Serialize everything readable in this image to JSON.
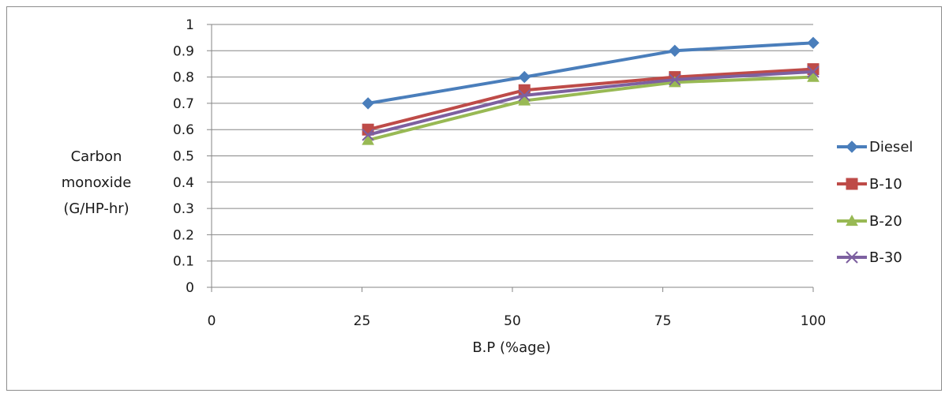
{
  "chart_data": {
    "type": "line",
    "xlabel": "B.P (%age)",
    "ylabel": [
      "Carbon",
      "monoxide",
      "(G/HP-hr)"
    ],
    "xlim": [
      0,
      100
    ],
    "ylim": [
      0,
      1
    ],
    "x_ticks": [
      "0",
      "25",
      "50",
      "75",
      "100"
    ],
    "y_ticks": [
      "0",
      "0.1",
      "0.2",
      "0.3",
      "0.4",
      "0.5",
      "0.6",
      "0.7",
      "0.8",
      "0.9",
      "1"
    ],
    "grid": "horizontal",
    "legend_position": "right",
    "series": [
      {
        "name": "Diesel",
        "color": "#4a7ebb",
        "marker": "diamond",
        "x": [
          26,
          52,
          77,
          100
        ],
        "values": [
          0.7,
          0.8,
          0.9,
          0.93
        ]
      },
      {
        "name": "B-10",
        "color": "#be4b48",
        "marker": "square",
        "x": [
          26,
          52,
          77,
          100
        ],
        "values": [
          0.6,
          0.75,
          0.8,
          0.83
        ]
      },
      {
        "name": "B-20",
        "color": "#98b954",
        "marker": "triangle",
        "x": [
          26,
          52,
          77,
          100
        ],
        "values": [
          0.56,
          0.71,
          0.78,
          0.8
        ]
      },
      {
        "name": "B-30",
        "color": "#7d60a0",
        "marker": "x",
        "x": [
          26,
          52,
          77,
          100
        ],
        "values": [
          0.58,
          0.73,
          0.79,
          0.82
        ]
      }
    ]
  }
}
